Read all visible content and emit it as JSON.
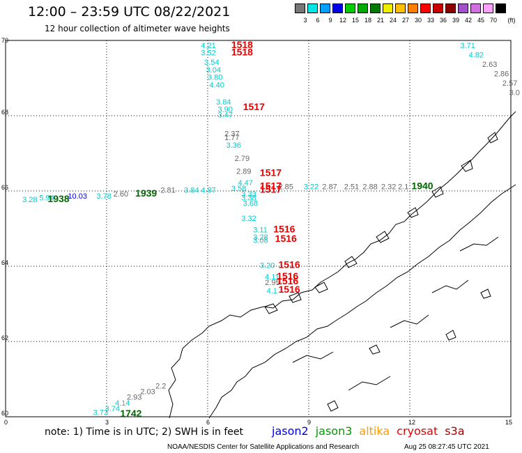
{
  "header": {
    "title": "12:00 – 23:59 UTC 08/22/2021",
    "subtitle": "12 hour collection of altimeter wave heights"
  },
  "legend": {
    "unit": "(ft)",
    "items": [
      {
        "label": "3",
        "color": "#777777"
      },
      {
        "label": "6",
        "color": "#00e5e5"
      },
      {
        "label": "9",
        "color": "#00a0ff"
      },
      {
        "label": "12",
        "color": "#0000e6"
      },
      {
        "label": "15",
        "color": "#00cc00"
      },
      {
        "label": "18",
        "color": "#00aa00"
      },
      {
        "label": "21",
        "color": "#007a00"
      },
      {
        "label": "24",
        "color": "#eeee00"
      },
      {
        "label": "27",
        "color": "#ffc000"
      },
      {
        "label": "30",
        "color": "#ff8000"
      },
      {
        "label": "33",
        "color": "#ff0000"
      },
      {
        "label": "36",
        "color": "#c80000"
      },
      {
        "label": "39",
        "color": "#8b0000"
      },
      {
        "label": "42",
        "color": "#a050c8"
      },
      {
        "label": "45",
        "color": "#d070e0"
      },
      {
        "label": "70",
        "color": "#ffa0ff"
      },
      {
        "label": "",
        "color": "#000000"
      }
    ]
  },
  "axes": {
    "lat_labels": [
      "70",
      "68",
      "66",
      "64",
      "62",
      "60"
    ],
    "lon_labels": [
      "0",
      "3",
      "6",
      "9",
      "12",
      "15"
    ]
  },
  "wave_labels": [
    {
      "text": "4.21",
      "color": "#00cccc",
      "lon": 5.8,
      "lat": 69.8
    },
    {
      "text": "3.52",
      "color": "#00cccc",
      "lon": 5.8,
      "lat": 69.6
    },
    {
      "text": "3.54",
      "color": "#00cccc",
      "lon": 5.9,
      "lat": 69.35
    },
    {
      "text": "3.04",
      "color": "#00cccc",
      "lon": 5.95,
      "lat": 69.15
    },
    {
      "text": "3.80",
      "color": "#00cccc",
      "lon": 6.0,
      "lat": 68.95
    },
    {
      "text": "4.40",
      "color": "#00cccc",
      "lon": 6.05,
      "lat": 68.75
    },
    {
      "text": "3.84",
      "color": "#00cccc",
      "lon": 6.25,
      "lat": 68.3
    },
    {
      "text": "3.90",
      "color": "#00cccc",
      "lon": 6.3,
      "lat": 68.1
    },
    {
      "text": "3.47",
      "color": "#00cccc",
      "lon": 6.3,
      "lat": 67.95
    },
    {
      "text": "2.37",
      "color": "#666666",
      "lon": 6.5,
      "lat": 67.45
    },
    {
      "text": "1.77",
      "color": "#666666",
      "lon": 6.5,
      "lat": 67.35
    },
    {
      "text": "3.36",
      "color": "#00cccc",
      "lon": 6.55,
      "lat": 67.15
    },
    {
      "text": "2.79",
      "color": "#666666",
      "lon": 6.8,
      "lat": 66.8
    },
    {
      "text": "2.89",
      "color": "#666666",
      "lon": 6.85,
      "lat": 66.45
    },
    {
      "text": "4.47",
      "color": "#00cccc",
      "lon": 6.9,
      "lat": 66.15
    },
    {
      "text": "3.58",
      "color": "#00cccc",
      "lon": 6.7,
      "lat": 66.0
    },
    {
      "text": "3.33",
      "color": "#00cccc",
      "lon": 7.0,
      "lat": 65.85
    },
    {
      "text": "3.38",
      "color": "#00cccc",
      "lon": 7.0,
      "lat": 65.75
    },
    {
      "text": "3.68",
      "color": "#00cccc",
      "lon": 7.05,
      "lat": 65.6
    },
    {
      "text": "2.85",
      "color": "#666666",
      "lon": 8.1,
      "lat": 66.05
    },
    {
      "text": "3.22",
      "color": "#00cccc",
      "lon": 8.85,
      "lat": 66.05
    },
    {
      "text": "2.87",
      "color": "#666666",
      "lon": 9.4,
      "lat": 66.05
    },
    {
      "text": "2.51",
      "color": "#666666",
      "lon": 10.05,
      "lat": 66.05
    },
    {
      "text": "2.88",
      "color": "#666666",
      "lon": 10.6,
      "lat": 66.05
    },
    {
      "text": "2.32",
      "color": "#666666",
      "lon": 11.15,
      "lat": 66.05
    },
    {
      "text": "2.1",
      "color": "#666666",
      "lon": 11.65,
      "lat": 66.05
    },
    {
      "text": "3.28",
      "color": "#00cccc",
      "lon": 0.5,
      "lat": 65.7
    },
    {
      "text": "5.94",
      "color": "#00cccc",
      "lon": 1.0,
      "lat": 65.75
    },
    {
      "text": "10.03",
      "color": "#0000e6",
      "lon": 1.85,
      "lat": 65.8
    },
    {
      "text": "3.78",
      "color": "#00cccc",
      "lon": 2.7,
      "lat": 65.8
    },
    {
      "text": "2.60",
      "color": "#666666",
      "lon": 3.2,
      "lat": 65.85
    },
    {
      "text": "2.81",
      "color": "#666666",
      "lon": 4.6,
      "lat": 65.95
    },
    {
      "text": "3.84",
      "color": "#00cccc",
      "lon": 5.3,
      "lat": 65.95
    },
    {
      "text": "4.87",
      "color": "#00cccc",
      "lon": 5.8,
      "lat": 65.95
    },
    {
      "text": "3.32",
      "color": "#00cccc",
      "lon": 7.0,
      "lat": 65.2
    },
    {
      "text": "3.11",
      "color": "#00cccc",
      "lon": 7.35,
      "lat": 64.9
    },
    {
      "text": "3.28",
      "color": "#00cccc",
      "lon": 7.35,
      "lat": 64.7
    },
    {
      "text": "3.08",
      "color": "#00cccc",
      "lon": 7.35,
      "lat": 64.62
    },
    {
      "text": "3.20",
      "color": "#00cccc",
      "lon": 7.55,
      "lat": 63.95
    },
    {
      "text": "4.11",
      "color": "#00cccc",
      "lon": 7.7,
      "lat": 63.65
    },
    {
      "text": "2.95",
      "color": "#666666",
      "lon": 7.7,
      "lat": 63.5
    },
    {
      "text": "4.1",
      "color": "#00cccc",
      "lon": 7.75,
      "lat": 63.28
    },
    {
      "text": "3.73",
      "color": "#00cccc",
      "lon": 2.6,
      "lat": 60.05
    },
    {
      "text": "3.74",
      "color": "#00cccc",
      "lon": 2.95,
      "lat": 60.15
    },
    {
      "text": "4.14",
      "color": "#00cccc",
      "lon": 3.25,
      "lat": 60.3
    },
    {
      "text": "2.93",
      "color": "#666666",
      "lon": 3.6,
      "lat": 60.45
    },
    {
      "text": "2.03",
      "color": "#666666",
      "lon": 4.0,
      "lat": 60.6
    },
    {
      "text": "2.2",
      "color": "#666666",
      "lon": 4.45,
      "lat": 60.75
    },
    {
      "text": "3.71",
      "color": "#00cccc",
      "lon": 13.5,
      "lat": 69.8
    },
    {
      "text": "4.82",
      "color": "#00cccc",
      "lon": 13.75,
      "lat": 69.55
    },
    {
      "text": "2.63",
      "color": "#666666",
      "lon": 14.15,
      "lat": 69.3
    },
    {
      "text": "2.86",
      "color": "#666666",
      "lon": 14.5,
      "lat": 69.05
    },
    {
      "text": "2.57",
      "color": "#666666",
      "lon": 14.75,
      "lat": 68.8
    },
    {
      "text": "3.0",
      "color": "#666666",
      "lon": 14.95,
      "lat": 68.55
    }
  ],
  "time_labels": [
    {
      "text": "1518",
      "color": "#e60000",
      "lon": 6.7,
      "lat": 69.8
    },
    {
      "text": "1518",
      "color": "#e60000",
      "lon": 6.7,
      "lat": 69.6
    },
    {
      "text": "1517",
      "color": "#e60000",
      "lon": 7.05,
      "lat": 68.15
    },
    {
      "text": "1517",
      "color": "#e60000",
      "lon": 7.55,
      "lat": 66.4
    },
    {
      "text": "1517",
      "color": "#e60000",
      "lon": 7.55,
      "lat": 66.05
    },
    {
      "text": "1517",
      "color": "#e60000",
      "lon": 7.55,
      "lat": 65.95
    },
    {
      "text": "1516",
      "color": "#e60000",
      "lon": 7.95,
      "lat": 64.9
    },
    {
      "text": "1516",
      "color": "#e60000",
      "lon": 8.0,
      "lat": 64.65
    },
    {
      "text": "1516",
      "color": "#e60000",
      "lon": 8.1,
      "lat": 63.95
    },
    {
      "text": "1516",
      "color": "#e60000",
      "lon": 8.05,
      "lat": 63.65
    },
    {
      "text": "1516",
      "color": "#e60000",
      "lon": 8.05,
      "lat": 63.52
    },
    {
      "text": "1516",
      "color": "#e60000",
      "lon": 8.1,
      "lat": 63.3
    },
    {
      "text": "1938",
      "color": "#006600",
      "lon": 1.25,
      "lat": 65.7
    },
    {
      "text": "1939",
      "color": "#006600",
      "lon": 3.85,
      "lat": 65.85
    },
    {
      "text": "1940",
      "color": "#006600",
      "lon": 12.05,
      "lat": 66.05
    },
    {
      "text": "1742",
      "color": "#006600",
      "lon": 3.4,
      "lat": 60.0
    }
  ],
  "note": "note: 1) Time is in UTC; 2) SWH is in feet",
  "satellites": [
    {
      "name": "jason2",
      "color": "#0000e6"
    },
    {
      "name": "jason3",
      "color": "#009900"
    },
    {
      "name": "altika",
      "color": "#ff9900"
    },
    {
      "name": "cryosat",
      "color": "#e60000"
    },
    {
      "name": "s3a",
      "color": "#a00000"
    }
  ],
  "footer": {
    "credit": "NOAA/NESDIS Center for Satellite Applications and Research",
    "timestamp": "Aug 25 08:27:45 UTC 2021"
  }
}
